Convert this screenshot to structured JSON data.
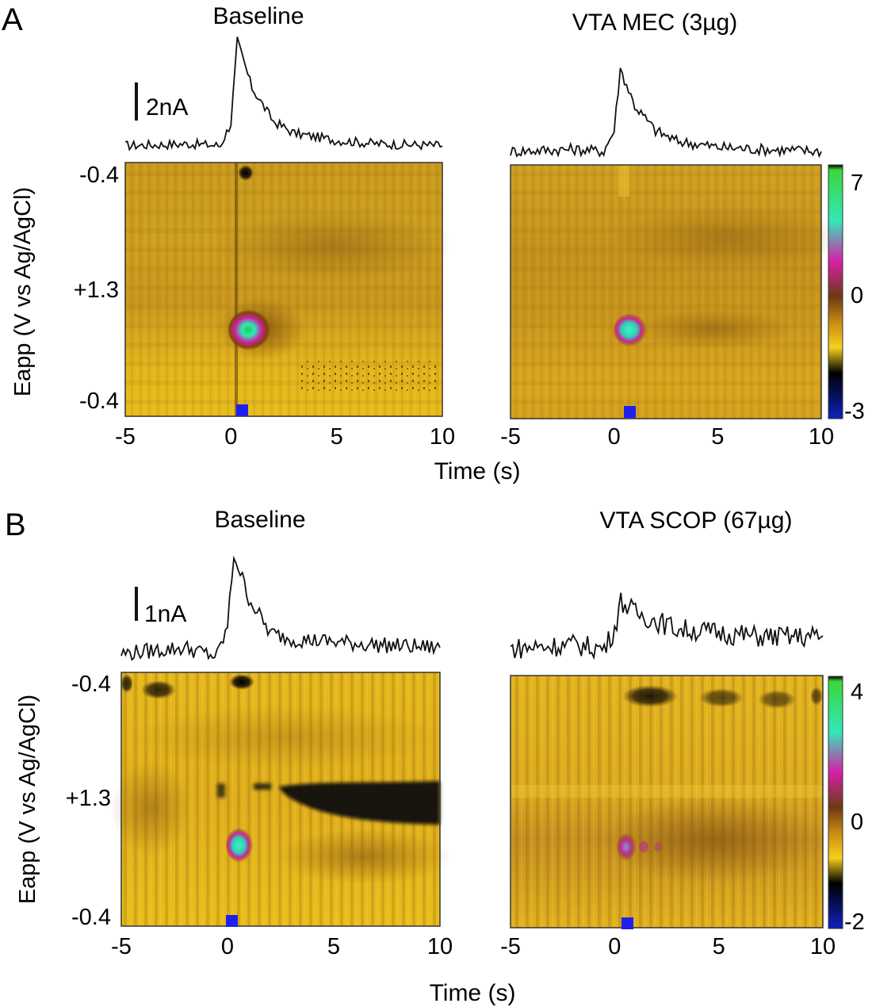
{
  "chart_data": [
    {
      "type": "heatmap",
      "panel": "A",
      "title": "Baseline",
      "xlabel": "",
      "ylabel": "Eapp (V vs Ag/AgCl)",
      "xlim": [
        -5,
        10
      ],
      "x_ticks": [
        "-5",
        "0",
        "5",
        "10"
      ],
      "y_ticks": [
        "-0.4",
        "+1.3",
        "-0.4"
      ],
      "scale_bar": "2nA",
      "stimulus_time_s": 0,
      "trace": {
        "x": [
          -5,
          -2,
          -0.5,
          0,
          0.3,
          1,
          2,
          3,
          5,
          7,
          10
        ],
        "y": [
          0.2,
          0.3,
          0.2,
          1.5,
          6.2,
          3.5,
          1.6,
          0.9,
          0.5,
          0.3,
          0.2
        ]
      },
      "hotspot": {
        "x": 0.2,
        "y": 0.68,
        "peak": 7
      }
    },
    {
      "type": "heatmap",
      "panel": "A",
      "title": "VTA MEC (3µg)",
      "xlabel": "Time (s)",
      "ylabel": "",
      "xlim": [
        -5,
        10
      ],
      "x_ticks": [
        "-5",
        "0",
        "5",
        "10"
      ],
      "stimulus_time_s": 0,
      "trace": {
        "x": [
          -5,
          -2,
          -0.5,
          0,
          0.3,
          1,
          2,
          3,
          5,
          7,
          10
        ],
        "y": [
          0.2,
          0.3,
          0.2,
          1.2,
          4.2,
          2.4,
          1.2,
          0.7,
          0.4,
          0.3,
          0.2
        ]
      },
      "hotspot": {
        "x": 0.0,
        "y": 0.68,
        "peak": 5
      },
      "colorbar": {
        "max": "7",
        "zero": "0",
        "min": "-3"
      }
    },
    {
      "type": "heatmap",
      "panel": "B",
      "title": "Baseline",
      "xlabel": "",
      "ylabel": "Eapp (V vs Ag/AgCl)",
      "xlim": [
        -5,
        10
      ],
      "x_ticks": [
        "-5",
        "0",
        "5",
        "10"
      ],
      "y_ticks": [
        "-0.4",
        "+1.3",
        "-0.4"
      ],
      "scale_bar": "1nA",
      "stimulus_time_s": 0,
      "trace": {
        "x": [
          -5,
          -2,
          -0.5,
          0,
          0.3,
          1,
          2,
          3,
          5,
          7,
          10
        ],
        "y": [
          0.1,
          0.3,
          0.0,
          1.0,
          3.5,
          2.0,
          0.8,
          0.6,
          0.5,
          0.4,
          0.3
        ]
      },
      "hotspot": {
        "x": 0.2,
        "y": 0.72,
        "peak": 4
      }
    },
    {
      "type": "heatmap",
      "panel": "B",
      "title": "VTA SCOP (67µg)",
      "xlabel": "Time (s)",
      "ylabel": "",
      "xlim": [
        -5,
        10
      ],
      "x_ticks": [
        "-5",
        "0",
        "5",
        "10"
      ],
      "stimulus_time_s": 0,
      "trace": {
        "x": [
          -5,
          -2,
          -0.5,
          0,
          0.3,
          1,
          2,
          3,
          5,
          7,
          10
        ],
        "y": [
          0.2,
          0.3,
          0.2,
          0.7,
          1.4,
          1.1,
          0.9,
          0.7,
          0.6,
          0.5,
          0.5
        ]
      },
      "hotspot": {
        "x": 0.0,
        "y": 0.72,
        "peak": 2
      },
      "colorbar": {
        "max": "4",
        "zero": "0",
        "min": "-2"
      }
    }
  ],
  "panel_letters": [
    "A",
    "B"
  ],
  "colors": {
    "trace": "#111111",
    "stimulus": "#1f1ff0",
    "background": "#d9a81a"
  }
}
